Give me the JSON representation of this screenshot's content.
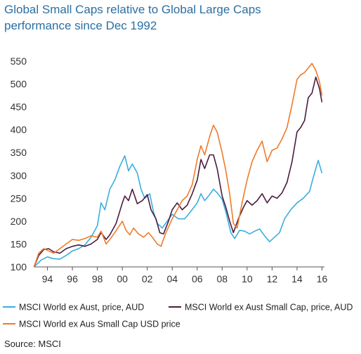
{
  "title_line1": "Global Small Caps relative to Global Large Caps",
  "title_line2": "performance since Dec 1992",
  "source": "Source: MSCI",
  "chart_data": {
    "type": "line",
    "title": "Global Small Caps relative to Global Large Caps performance since Dec 1992",
    "ylim": [
      100,
      550
    ],
    "yticks": [
      100,
      150,
      200,
      250,
      300,
      350,
      400,
      450,
      500,
      550
    ],
    "xlim": [
      1992.9,
      2016.2
    ],
    "xticks": [
      {
        "v": 1994,
        "label": "94"
      },
      {
        "v": 1996,
        "label": "96"
      },
      {
        "v": 1998,
        "label": "98"
      },
      {
        "v": 2000,
        "label": "00"
      },
      {
        "v": 2002,
        "label": "02"
      },
      {
        "v": 2004,
        "label": "04"
      },
      {
        "v": 2006,
        "label": "06"
      },
      {
        "v": 2008,
        "label": "08"
      },
      {
        "v": 2010,
        "label": "10"
      },
      {
        "v": 2012,
        "label": "12"
      },
      {
        "v": 2014,
        "label": "14"
      },
      {
        "v": 2016,
        "label": "16"
      }
    ],
    "grid": false,
    "legend_position": "bottom",
    "series": [
      {
        "name": "MSCI World ex Aust, price, AUD",
        "color": "#3aaede",
        "points": [
          [
            1992.92,
            100
          ],
          [
            1993.5,
            115
          ],
          [
            1994,
            122
          ],
          [
            1994.5,
            118
          ],
          [
            1995,
            117
          ],
          [
            1995.5,
            125
          ],
          [
            1996,
            135
          ],
          [
            1996.5,
            140
          ],
          [
            1997,
            148
          ],
          [
            1997.5,
            165
          ],
          [
            1998,
            190
          ],
          [
            1998.3,
            240
          ],
          [
            1998.6,
            225
          ],
          [
            1999,
            270
          ],
          [
            1999.4,
            290
          ],
          [
            1999.8,
            320
          ],
          [
            2000.2,
            343
          ],
          [
            2000.5,
            310
          ],
          [
            2000.8,
            325
          ],
          [
            2001.2,
            305
          ],
          [
            2001.5,
            270
          ],
          [
            2001.8,
            250
          ],
          [
            2002.2,
            260
          ],
          [
            2002.5,
            220
          ],
          [
            2002.8,
            195
          ],
          [
            2003.2,
            185
          ],
          [
            2003.6,
            200
          ],
          [
            2004,
            215
          ],
          [
            2004.5,
            205
          ],
          [
            2005,
            205
          ],
          [
            2005.5,
            222
          ],
          [
            2006,
            240
          ],
          [
            2006.3,
            260
          ],
          [
            2006.6,
            245
          ],
          [
            2007,
            258
          ],
          [
            2007.3,
            270
          ],
          [
            2007.6,
            262
          ],
          [
            2008,
            248
          ],
          [
            2008.3,
            220
          ],
          [
            2008.7,
            175
          ],
          [
            2009,
            162
          ],
          [
            2009.4,
            180
          ],
          [
            2009.8,
            178
          ],
          [
            2010.2,
            172
          ],
          [
            2010.6,
            178
          ],
          [
            2011,
            183
          ],
          [
            2011.4,
            168
          ],
          [
            2011.8,
            155
          ],
          [
            2012.2,
            165
          ],
          [
            2012.6,
            175
          ],
          [
            2013,
            205
          ],
          [
            2013.5,
            225
          ],
          [
            2014,
            240
          ],
          [
            2014.5,
            250
          ],
          [
            2015,
            265
          ],
          [
            2015.2,
            285
          ],
          [
            2015.5,
            315
          ],
          [
            2015.7,
            333
          ],
          [
            2016,
            305
          ]
        ]
      },
      {
        "name": "MSCI World ex Aust Small Cap, price, AUD",
        "color": "#4a1c3e",
        "points": [
          [
            1992.92,
            100
          ],
          [
            1993.3,
            125
          ],
          [
            1993.7,
            138
          ],
          [
            1994.1,
            140
          ],
          [
            1994.5,
            133
          ],
          [
            1995,
            130
          ],
          [
            1995.5,
            140
          ],
          [
            1996,
            145
          ],
          [
            1996.5,
            148
          ],
          [
            1997,
            145
          ],
          [
            1997.5,
            150
          ],
          [
            1998,
            160
          ],
          [
            1998.3,
            175
          ],
          [
            1998.7,
            160
          ],
          [
            1999,
            170
          ],
          [
            1999.5,
            195
          ],
          [
            2000,
            240
          ],
          [
            2000.2,
            255
          ],
          [
            2000.5,
            245
          ],
          [
            2000.8,
            270
          ],
          [
            2001.2,
            238
          ],
          [
            2001.6,
            245
          ],
          [
            2002,
            258
          ],
          [
            2002.3,
            225
          ],
          [
            2002.7,
            205
          ],
          [
            2003,
            175
          ],
          [
            2003.3,
            172
          ],
          [
            2003.7,
            200
          ],
          [
            2004,
            225
          ],
          [
            2004.4,
            240
          ],
          [
            2004.8,
            225
          ],
          [
            2005.2,
            235
          ],
          [
            2005.6,
            260
          ],
          [
            2006,
            290
          ],
          [
            2006.3,
            335
          ],
          [
            2006.6,
            315
          ],
          [
            2007,
            345
          ],
          [
            2007.3,
            345
          ],
          [
            2007.6,
            315
          ],
          [
            2008,
            255
          ],
          [
            2008.3,
            230
          ],
          [
            2008.6,
            200
          ],
          [
            2008.9,
            175
          ],
          [
            2009.3,
            205
          ],
          [
            2009.7,
            230
          ],
          [
            2010,
            245
          ],
          [
            2010.4,
            235
          ],
          [
            2010.8,
            245
          ],
          [
            2011.2,
            260
          ],
          [
            2011.6,
            240
          ],
          [
            2012,
            255
          ],
          [
            2012.4,
            250
          ],
          [
            2012.8,
            262
          ],
          [
            2013.2,
            285
          ],
          [
            2013.6,
            330
          ],
          [
            2014,
            395
          ],
          [
            2014.3,
            405
          ],
          [
            2014.6,
            420
          ],
          [
            2014.9,
            470
          ],
          [
            2015.2,
            480
          ],
          [
            2015.5,
            515
          ],
          [
            2015.8,
            490
          ],
          [
            2016,
            460
          ]
        ]
      },
      {
        "name": "MSCI World ex Aus Small Cap USD price",
        "color": "#f07a2a",
        "points": [
          [
            1992.92,
            100
          ],
          [
            1993.3,
            130
          ],
          [
            1993.7,
            140
          ],
          [
            1994.1,
            135
          ],
          [
            1994.5,
            130
          ],
          [
            1995,
            140
          ],
          [
            1995.5,
            150
          ],
          [
            1996,
            160
          ],
          [
            1996.5,
            158
          ],
          [
            1997,
            162
          ],
          [
            1997.5,
            168
          ],
          [
            1998,
            165
          ],
          [
            1998.3,
            178
          ],
          [
            1998.7,
            150
          ],
          [
            1999,
            160
          ],
          [
            1999.4,
            175
          ],
          [
            2000,
            200
          ],
          [
            2000.3,
            180
          ],
          [
            2000.6,
            170
          ],
          [
            2000.9,
            185
          ],
          [
            2001.3,
            172
          ],
          [
            2001.7,
            165
          ],
          [
            2002.1,
            175
          ],
          [
            2002.4,
            165
          ],
          [
            2002.8,
            150
          ],
          [
            2003.1,
            145
          ],
          [
            2003.5,
            175
          ],
          [
            2004,
            205
          ],
          [
            2004.4,
            225
          ],
          [
            2004.8,
            245
          ],
          [
            2005.2,
            255
          ],
          [
            2005.6,
            280
          ],
          [
            2006,
            335
          ],
          [
            2006.3,
            365
          ],
          [
            2006.6,
            345
          ],
          [
            2007,
            385
          ],
          [
            2007.3,
            410
          ],
          [
            2007.6,
            395
          ],
          [
            2008,
            350
          ],
          [
            2008.3,
            310
          ],
          [
            2008.6,
            260
          ],
          [
            2008.9,
            195
          ],
          [
            2009.2,
            185
          ],
          [
            2009.6,
            240
          ],
          [
            2010,
            290
          ],
          [
            2010.4,
            330
          ],
          [
            2010.8,
            355
          ],
          [
            2011.2,
            375
          ],
          [
            2011.6,
            330
          ],
          [
            2012,
            355
          ],
          [
            2012.4,
            360
          ],
          [
            2012.8,
            380
          ],
          [
            2013.2,
            405
          ],
          [
            2013.6,
            455
          ],
          [
            2014,
            510
          ],
          [
            2014.3,
            520
          ],
          [
            2014.6,
            525
          ],
          [
            2014.9,
            535
          ],
          [
            2015.2,
            545
          ],
          [
            2015.5,
            530
          ],
          [
            2015.8,
            505
          ],
          [
            2016,
            475
          ]
        ]
      }
    ]
  }
}
